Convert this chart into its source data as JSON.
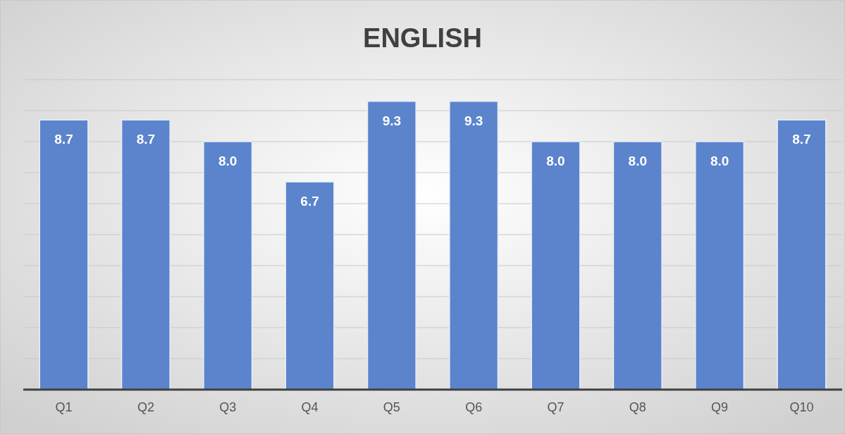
{
  "chart_data": {
    "type": "bar",
    "title": "ENGLISH",
    "categories": [
      "Q1",
      "Q2",
      "Q3",
      "Q4",
      "Q5",
      "Q6",
      "Q7",
      "Q8",
      "Q9",
      "Q10"
    ],
    "values": [
      8.7,
      8.7,
      8.0,
      6.7,
      9.3,
      9.3,
      8.0,
      8.0,
      8.0,
      8.7
    ],
    "color": "#5b84cc",
    "ylim": [
      0,
      10
    ],
    "yticks": [
      {
        "value": 0,
        "label": null
      },
      {
        "value": 1,
        "label": null
      },
      {
        "value": 2,
        "label": null
      },
      {
        "value": 3,
        "label": null
      },
      {
        "value": 4,
        "label": null
      },
      {
        "value": 5,
        "label": null
      },
      {
        "value": 6,
        "label": null
      },
      {
        "value": 7,
        "label": null
      },
      {
        "value": 8,
        "label": null
      },
      {
        "value": 9,
        "label": null
      },
      {
        "value": 10,
        "label": null
      }
    ],
    "value_labels": [
      "8.7",
      "8.7",
      "8.0",
      "6.7",
      "9.3",
      "9.3",
      "8.0",
      "8.0",
      "8.0",
      "8.7"
    ],
    "grid": "y",
    "tick_labels": "x"
  }
}
